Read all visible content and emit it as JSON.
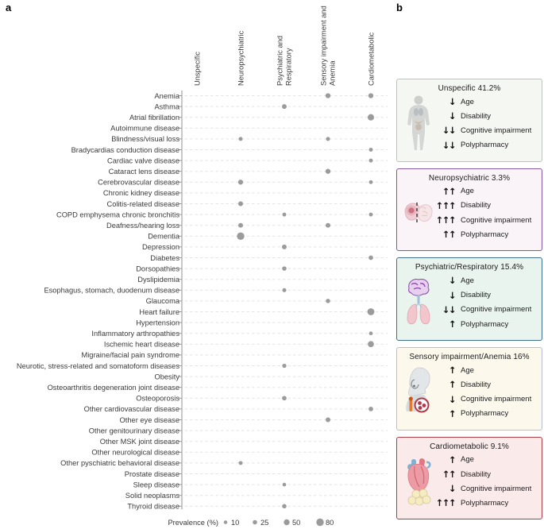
{
  "panels": {
    "a": "a",
    "b": "b"
  },
  "chart_data": {
    "type": "scatter",
    "subtype": "bubble-matrix",
    "columns": [
      "Unspecific",
      "Neuropsychiatric",
      "Psychiatric and Respiratory",
      "Sensory impairment and Anemia",
      "Cardiometabolic"
    ],
    "rows": [
      "Anemia",
      "Asthma",
      "Atrial fibrillation",
      "Autoimmune disease",
      "Blindness/visual loss",
      "Bradycardias conduction disease",
      "Cardiac valve disease",
      "Cataract lens disease",
      "Cerebrovascular disease",
      "Chronic kidney disease",
      "Colitis-related disease",
      "COPD emphysema chronic bronchitis",
      "Deafness/hearing loss",
      "Dementia",
      "Depression",
      "Diabetes",
      "Dorsopathies",
      "Dyslipidemia",
      "Esophagus, stomach, duodenum disease",
      "Glaucoma",
      "Heart failure",
      "Hypertension",
      "Inflammatory arthropathies",
      "Ischemic heart disease",
      "Migraine/facial pain syndrome",
      "Neurotic, stress-related and somatoform diseases",
      "Obesity",
      "Osteoarthritis degeneration joint disease",
      "Osteoporosis",
      "Other cardiovascular disease",
      "Other eye disease",
      "Other genitourinary disease",
      "Other MSK joint disease",
      "Other neurological disease",
      "Other pyschiatric behavioral disease",
      "Prostate disease",
      "Sleep disease",
      "Solid neoplasms",
      "Thyroid disease"
    ],
    "dots": [
      {
        "row": "Anemia",
        "col": "Sensory impairment and Anemia",
        "prevalence": 35
      },
      {
        "row": "Anemia",
        "col": "Cardiometabolic",
        "prevalence": 35
      },
      {
        "row": "Asthma",
        "col": "Psychiatric and Respiratory",
        "prevalence": 30
      },
      {
        "row": "Atrial fibrillation",
        "col": "Cardiometabolic",
        "prevalence": 60
      },
      {
        "row": "Blindness/visual loss",
        "col": "Neuropsychiatric",
        "prevalence": 16
      },
      {
        "row": "Blindness/visual loss",
        "col": "Sensory impairment and Anemia",
        "prevalence": 18
      },
      {
        "row": "Bradycardias conduction disease",
        "col": "Cardiometabolic",
        "prevalence": 16
      },
      {
        "row": "Cardiac valve disease",
        "col": "Cardiometabolic",
        "prevalence": 16
      },
      {
        "row": "Cataract lens disease",
        "col": "Sensory impairment and Anemia",
        "prevalence": 35
      },
      {
        "row": "Cerebrovascular disease",
        "col": "Neuropsychiatric",
        "prevalence": 35
      },
      {
        "row": "Cerebrovascular disease",
        "col": "Cardiometabolic",
        "prevalence": 15
      },
      {
        "row": "Colitis-related disease",
        "col": "Neuropsychiatric",
        "prevalence": 32
      },
      {
        "row": "COPD emphysema chronic bronchitis",
        "col": "Psychiatric and Respiratory",
        "prevalence": 16
      },
      {
        "row": "COPD emphysema chronic bronchitis",
        "col": "Cardiometabolic",
        "prevalence": 15
      },
      {
        "row": "Deafness/hearing loss",
        "col": "Neuropsychiatric",
        "prevalence": 30
      },
      {
        "row": "Deafness/hearing loss",
        "col": "Sensory impairment and Anemia",
        "prevalence": 30
      },
      {
        "row": "Dementia",
        "col": "Neuropsychiatric",
        "prevalence": 80
      },
      {
        "row": "Depression",
        "col": "Psychiatric and Respiratory",
        "prevalence": 30
      },
      {
        "row": "Diabetes",
        "col": "Cardiometabolic",
        "prevalence": 26
      },
      {
        "row": "Dorsopathies",
        "col": "Psychiatric and Respiratory",
        "prevalence": 24
      },
      {
        "row": "Esophagus, stomach, duodenum disease",
        "col": "Psychiatric and Respiratory",
        "prevalence": 18
      },
      {
        "row": "Glaucoma",
        "col": "Sensory impairment and Anemia",
        "prevalence": 24
      },
      {
        "row": "Heart failure",
        "col": "Cardiometabolic",
        "prevalence": 70
      },
      {
        "row": "Inflammatory arthropathies",
        "col": "Cardiometabolic",
        "prevalence": 12
      },
      {
        "row": "Ischemic heart disease",
        "col": "Cardiometabolic",
        "prevalence": 55
      },
      {
        "row": "Neurotic, stress-related and somatoform diseases",
        "col": "Psychiatric and Respiratory",
        "prevalence": 20
      },
      {
        "row": "Osteoporosis",
        "col": "Psychiatric and Respiratory",
        "prevalence": 26
      },
      {
        "row": "Other cardiovascular disease",
        "col": "Cardiometabolic",
        "prevalence": 28
      },
      {
        "row": "Other eye disease",
        "col": "Sensory impairment and Anemia",
        "prevalence": 30
      },
      {
        "row": "Other pyschiatric behavioral disease",
        "col": "Neuropsychiatric",
        "prevalence": 15
      },
      {
        "row": "Sleep disease",
        "col": "Psychiatric and Respiratory",
        "prevalence": 12
      },
      {
        "row": "Thyroid disease",
        "col": "Psychiatric and Respiratory",
        "prevalence": 24
      }
    ],
    "size_legend": {
      "label": "Prevalence (%)",
      "sizes": [
        10,
        25,
        50,
        80
      ]
    },
    "dot_color": "#9b9b9b",
    "grid": "dashed-horizontal",
    "legend_position": "bottom"
  },
  "clusters": [
    {
      "title": "Unspecific 41.2%",
      "icon": "human-body-icon",
      "border_color": "#b7c7c0",
      "bg_color": "#f5f7f3",
      "factors": [
        {
          "arrows": "↓",
          "label": "Age"
        },
        {
          "arrows": "↓",
          "label": "Disability"
        },
        {
          "arrows": "↓↓",
          "label": "Cognitive impairment"
        },
        {
          "arrows": "↓↓",
          "label": "Polypharmacy"
        }
      ]
    },
    {
      "title": "Neuropsychiatric 3.3%",
      "icon": "brain-icon",
      "border_color": "#7e57a5",
      "bg_color": "#faf3f8",
      "factors": [
        {
          "arrows": "↑↑",
          "label": "Age"
        },
        {
          "arrows": "↑↑↑",
          "label": "Disability"
        },
        {
          "arrows": "↑↑↑",
          "label": "Cognitive impairment"
        },
        {
          "arrows": "↑↑",
          "label": "Polypharmacy"
        }
      ]
    },
    {
      "title": "Psychiatric/Respiratory 15.4%",
      "icon": "brain-lungs-icon",
      "border_color": "#3f6e8e",
      "bg_color": "#e9f4ee",
      "factors": [
        {
          "arrows": "↓",
          "label": "Age"
        },
        {
          "arrows": "↓",
          "label": "Disability"
        },
        {
          "arrows": "↓↓",
          "label": "Cognitive impairment"
        },
        {
          "arrows": "↑",
          "label": "Polypharmacy"
        }
      ]
    },
    {
      "title": "Sensory impairment/Anemia 16%",
      "icon": "head-hearing-blood-icon",
      "border_color": "#b6c0d8",
      "bg_color": "#fcf8ec",
      "factors": [
        {
          "arrows": "↑",
          "label": "Age"
        },
        {
          "arrows": "↑",
          "label": "Disability"
        },
        {
          "arrows": "↓",
          "label": "Cognitive impairment"
        },
        {
          "arrows": "↑",
          "label": "Polypharmacy"
        }
      ]
    },
    {
      "title": "Cardiometabolic 9.1%",
      "icon": "heart-fat-icon",
      "border_color": "#a84048",
      "bg_color": "#fbeaea",
      "factors": [
        {
          "arrows": "↑",
          "label": "Age"
        },
        {
          "arrows": "↑↑",
          "label": "Disability"
        },
        {
          "arrows": "↓",
          "label": "Cognitive impairment"
        },
        {
          "arrows": "↑↑↑",
          "label": "Polypharmacy"
        }
      ]
    }
  ]
}
